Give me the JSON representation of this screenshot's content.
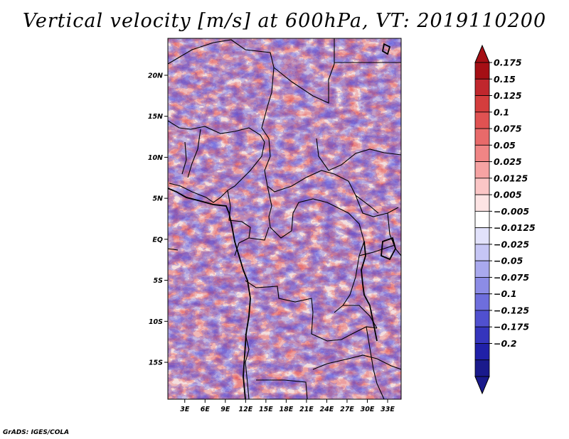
{
  "title": "Vertical velocity [m/s] at 600hPa, VT: 2019110200",
  "credit": "GrADS: IGES/COLA",
  "map": {
    "lat_labels": [
      "20N",
      "15N",
      "10N",
      "5N",
      "EQ",
      "5S",
      "10S",
      "15S"
    ],
    "lon_labels": [
      "3E",
      "6E",
      "9E",
      "12E",
      "15E",
      "18E",
      "21E",
      "24E",
      "27E",
      "30E",
      "33E"
    ],
    "lat_values": [
      20,
      15,
      10,
      5,
      0,
      -5,
      -10,
      -15
    ],
    "lon_values": [
      3,
      6,
      9,
      12,
      15,
      18,
      21,
      24,
      27,
      30,
      33
    ],
    "lon_range": [
      0.5,
      35
    ],
    "lat_range": [
      -19.5,
      24.5
    ]
  },
  "colorbar": {
    "labels": [
      "0.175",
      "0.15",
      "0.125",
      "0.1",
      "0.075",
      "0.05",
      "0.025",
      "0.0125",
      "0.005",
      "−0.005",
      "−0.0125",
      "−0.025",
      "−0.05",
      "−0.075",
      "−0.1",
      "−0.125",
      "−0.175",
      "−0.2"
    ],
    "colors": [
      "#a50f15",
      "#c0272d",
      "#d43d3d",
      "#e05252",
      "#e86a6a",
      "#f08585",
      "#f6a3a3",
      "#fbc6c6",
      "#fde4e4",
      "#ffffff",
      "#e2e2fb",
      "#c6c6f5",
      "#a9a9ee",
      "#8c8ce6",
      "#6e6edd",
      "#5050cf",
      "#3535bd",
      "#2020a8",
      "#1a1a8c"
    ],
    "under_color": "#1a1a8c",
    "over_color": "#a50f15"
  }
}
